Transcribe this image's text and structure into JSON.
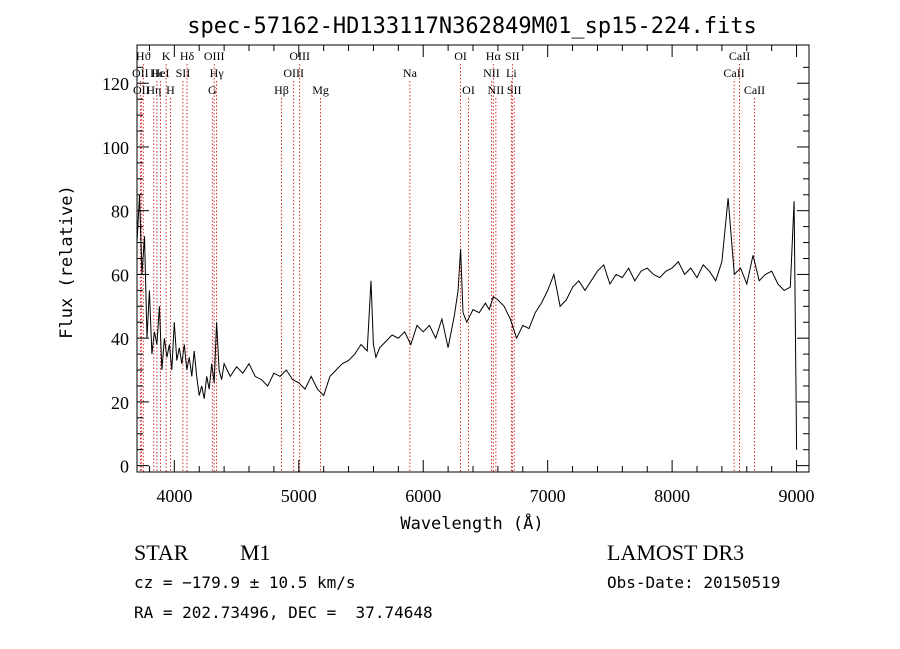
{
  "chart_data": {
    "type": "line",
    "title": "spec-57162-HD133117N362849M01_sp15-224.fits",
    "xlabel": "Wavelength (Å)",
    "ylabel": "Flux (relative)",
    "xlim": [
      3700,
      9100
    ],
    "ylim": [
      -2,
      132
    ],
    "xticks": [
      4000,
      5000,
      6000,
      7000,
      8000,
      9000
    ],
    "xtick_labels": [
      "4000",
      "5000",
      "6000",
      "7000",
      "8000",
      "9000"
    ],
    "yticks": [
      0,
      20,
      40,
      60,
      80,
      100,
      120
    ],
    "ytick_labels": [
      "0",
      "20",
      "40",
      "60",
      "80",
      "100",
      "120"
    ],
    "grid": false,
    "line_color": "#000000",
    "marker_color": "#cc0000",
    "spectrum": {
      "x": [
        3700,
        3720,
        3740,
        3760,
        3780,
        3800,
        3820,
        3840,
        3860,
        3880,
        3900,
        3920,
        3940,
        3960,
        3980,
        4000,
        4020,
        4040,
        4060,
        4080,
        4100,
        4120,
        4140,
        4160,
        4180,
        4200,
        4220,
        4240,
        4260,
        4280,
        4300,
        4320,
        4340,
        4360,
        4380,
        4400,
        4450,
        4500,
        4550,
        4600,
        4650,
        4700,
        4750,
        4800,
        4850,
        4900,
        4950,
        5000,
        5050,
        5100,
        5150,
        5200,
        5250,
        5300,
        5350,
        5400,
        5450,
        5500,
        5550,
        5580,
        5600,
        5620,
        5650,
        5700,
        5750,
        5800,
        5850,
        5900,
        5950,
        6000,
        6050,
        6100,
        6150,
        6200,
        6250,
        6280,
        6300,
        6320,
        6350,
        6400,
        6450,
        6500,
        6530,
        6563,
        6600,
        6650,
        6700,
        6750,
        6800,
        6850,
        6900,
        6950,
        7000,
        7050,
        7100,
        7150,
        7200,
        7250,
        7300,
        7350,
        7400,
        7450,
        7500,
        7550,
        7600,
        7650,
        7700,
        7750,
        7800,
        7850,
        7900,
        7950,
        8000,
        8050,
        8100,
        8150,
        8200,
        8250,
        8300,
        8350,
        8400,
        8450,
        8500,
        8550,
        8600,
        8650,
        8700,
        8750,
        8800,
        8850,
        8900,
        8950,
        8980,
        9000
      ],
      "y": [
        70,
        85,
        60,
        72,
        40,
        55,
        35,
        42,
        38,
        50,
        30,
        40,
        34,
        38,
        30,
        45,
        33,
        37,
        32,
        38,
        30,
        34,
        28,
        36,
        28,
        22,
        25,
        21,
        28,
        24,
        32,
        26,
        45,
        30,
        27,
        32,
        28,
        31,
        29,
        32,
        28,
        27,
        25,
        29,
        28,
        30,
        27,
        26,
        24,
        28,
        24,
        22,
        28,
        30,
        32,
        33,
        35,
        38,
        36,
        58,
        38,
        34,
        37,
        39,
        41,
        40,
        42,
        38,
        44,
        42,
        44,
        40,
        46,
        37,
        47,
        55,
        68,
        48,
        45,
        49,
        48,
        51,
        49,
        53,
        52,
        50,
        46,
        40,
        44,
        43,
        48,
        51,
        55,
        60,
        50,
        52,
        56,
        58,
        55,
        58,
        61,
        63,
        57,
        60,
        59,
        62,
        58,
        61,
        62,
        60,
        59,
        61,
        62,
        64,
        60,
        62,
        59,
        63,
        61,
        58,
        64,
        84,
        60,
        62,
        57,
        66,
        58,
        60,
        61,
        57,
        55,
        56,
        83,
        5
      ]
    },
    "line_markers": [
      {
        "label": "Hϑ",
        "x": 3750,
        "row": 1
      },
      {
        "label": "OII",
        "x": 3727,
        "row": 2
      },
      {
        "label": "OII",
        "x": 3735,
        "row": 3
      },
      {
        "label": "K",
        "x": 3934,
        "row": 1
      },
      {
        "label": "Hϵ",
        "x": 3860,
        "row": 2
      },
      {
        "label": "Hη",
        "x": 3835,
        "row": 3
      },
      {
        "label": "HeI",
        "x": 3889,
        "row": 2
      },
      {
        "label": "H",
        "x": 3969,
        "row": 3
      },
      {
        "label": "Hδ",
        "x": 4102,
        "row": 1
      },
      {
        "label": "SII",
        "x": 4069,
        "row": 2
      },
      {
        "label": "OIII",
        "x": 4320,
        "row": 1
      },
      {
        "label": "Hγ",
        "x": 4340,
        "row": 2
      },
      {
        "label": "G",
        "x": 4305,
        "row": 3
      },
      {
        "label": "OIII",
        "x": 5007,
        "row": 1
      },
      {
        "label": "OIII",
        "x": 4959,
        "row": 2
      },
      {
        "label": "Hβ",
        "x": 4861,
        "row": 3
      },
      {
        "label": "Mg",
        "x": 5175,
        "row": 3
      },
      {
        "label": "Na",
        "x": 5893,
        "row": 2
      },
      {
        "label": "OI",
        "x": 6300,
        "row": 1
      },
      {
        "label": "OI",
        "x": 6364,
        "row": 3
      },
      {
        "label": "Hα",
        "x": 6563,
        "row": 1
      },
      {
        "label": "SII",
        "x": 6716,
        "row": 1
      },
      {
        "label": "NII",
        "x": 6548,
        "row": 2
      },
      {
        "label": "Li",
        "x": 6708,
        "row": 2
      },
      {
        "label": "NII",
        "x": 6584,
        "row": 3
      },
      {
        "label": "SII",
        "x": 6731,
        "row": 3
      },
      {
        "label": "CaII",
        "x": 8542,
        "row": 1
      },
      {
        "label": "CaII",
        "x": 8498,
        "row": 2
      },
      {
        "label": "CaII",
        "x": 8662,
        "row": 3
      }
    ]
  },
  "info": {
    "object_class": "STAR",
    "subclass": "M1",
    "survey": "LAMOST DR3",
    "cz": "cz = −179.9 ± 10.5 km/s",
    "obs_date": "Obs-Date: 20150519",
    "radec": "RA = 202.73496, DEC =  37.74648"
  }
}
